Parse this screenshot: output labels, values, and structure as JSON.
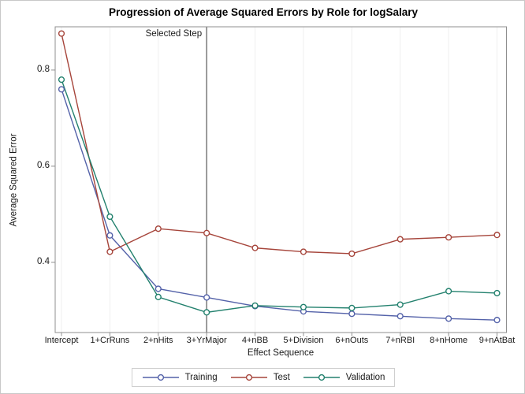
{
  "chart_data": {
    "type": "line",
    "title": "Progression of Average Squared Errors by Role for logSalary",
    "xlabel": "Effect Sequence",
    "ylabel": "Average Squared Error",
    "categories": [
      "Intercept",
      "1+CrRuns",
      "2+nHits",
      "3+YrMajor",
      "4+nBB",
      "5+Division",
      "6+nOuts",
      "7+nRBI",
      "8+nHome",
      "9+nAtBat"
    ],
    "series": [
      {
        "name": "Training",
        "color": "#5462A9",
        "values": [
          0.76,
          0.456,
          0.345,
          0.327,
          0.309,
          0.298,
          0.293,
          0.288,
          0.283,
          0.28
        ]
      },
      {
        "name": "Test",
        "color": "#A6453B",
        "values": [
          0.876,
          0.422,
          0.47,
          0.461,
          0.43,
          0.422,
          0.418,
          0.448,
          0.452,
          0.457
        ]
      },
      {
        "name": "Validation",
        "color": "#23816E",
        "values": [
          0.78,
          0.495,
          0.328,
          0.296,
          0.31,
          0.307,
          0.305,
          0.312,
          0.34,
          0.336
        ]
      }
    ],
    "ylim": [
      0.254,
      0.89
    ],
    "yticks": [
      0.4,
      0.6,
      0.8
    ],
    "grid": "vertical",
    "legend_position": "bottom",
    "reference_line": {
      "label": "Selected Step",
      "category": "3+YrMajor",
      "category_index": 3
    }
  },
  "colors": {
    "plot_border": "#8F8F8F",
    "gridline": "#EFEFEF",
    "reference_line": "#7A7A7A",
    "tick": "#8F8F8F",
    "text": "#1A1A1A",
    "outer_border": "#C8C8C8",
    "marker_fill": "#FFFFFF"
  }
}
